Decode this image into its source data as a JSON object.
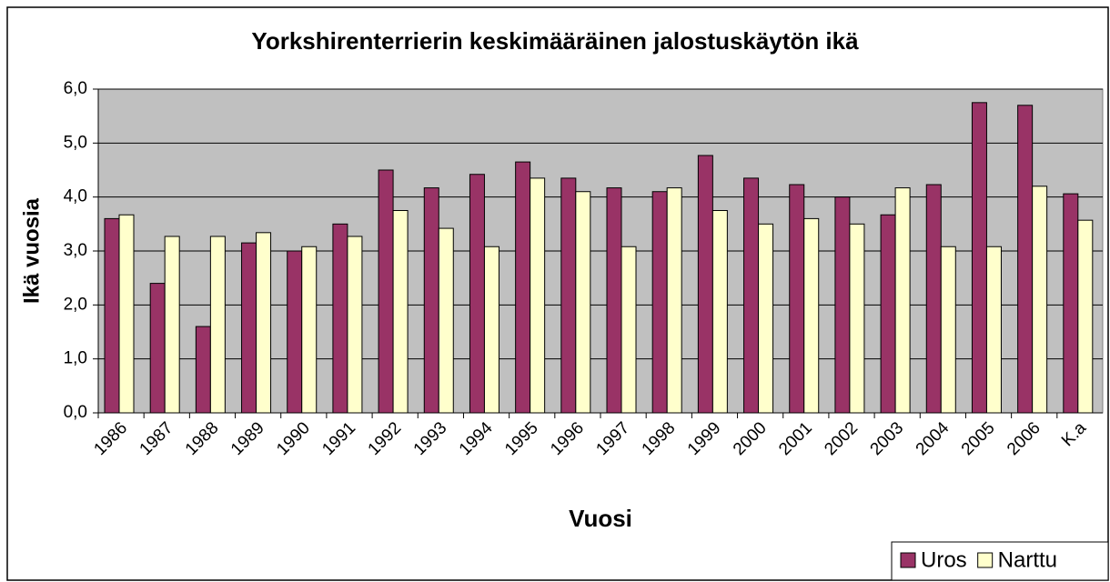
{
  "chart_data": {
    "type": "bar",
    "title": "Yorkshirenterrierin keskimääräinen jalostuskäytön ikä",
    "x_label": "Vuosi",
    "y_label": "Ikä vuosia",
    "categories": [
      "1986",
      "1987",
      "1988",
      "1989",
      "1990",
      "1991",
      "1992",
      "1993",
      "1994",
      "1995",
      "1996",
      "1997",
      "1998",
      "1999",
      "2000",
      "2001",
      "2002",
      "2003",
      "2004",
      "2005",
      "2006",
      "K.a"
    ],
    "series": [
      {
        "name": "Uros",
        "color": "#993366",
        "values": [
          3.6,
          2.4,
          1.6,
          3.15,
          3.0,
          3.5,
          4.5,
          4.17,
          4.42,
          4.65,
          4.35,
          4.17,
          4.1,
          4.77,
          4.35,
          4.23,
          4.0,
          3.67,
          4.23,
          5.75,
          5.7,
          4.06
        ]
      },
      {
        "name": "Narttu",
        "color": "#ffffcc",
        "values": [
          3.67,
          3.27,
          3.27,
          3.34,
          3.08,
          3.27,
          3.75,
          3.42,
          3.08,
          4.35,
          4.1,
          3.08,
          4.17,
          3.75,
          3.5,
          3.6,
          3.5,
          4.17,
          3.08,
          3.08,
          4.2,
          3.57
        ]
      }
    ],
    "ylim": [
      0,
      6
    ],
    "yticks": [
      {
        "value": 0,
        "label": "0,0"
      },
      {
        "value": 1,
        "label": "1,0"
      },
      {
        "value": 2,
        "label": "2,0"
      },
      {
        "value": 3,
        "label": "3,0"
      },
      {
        "value": 4,
        "label": "4,0"
      },
      {
        "value": 5,
        "label": "5,0"
      },
      {
        "value": 6,
        "label": "6,0"
      }
    ],
    "grid": true,
    "legend": "bottom-right",
    "plot_background": "#c0c0c0"
  }
}
